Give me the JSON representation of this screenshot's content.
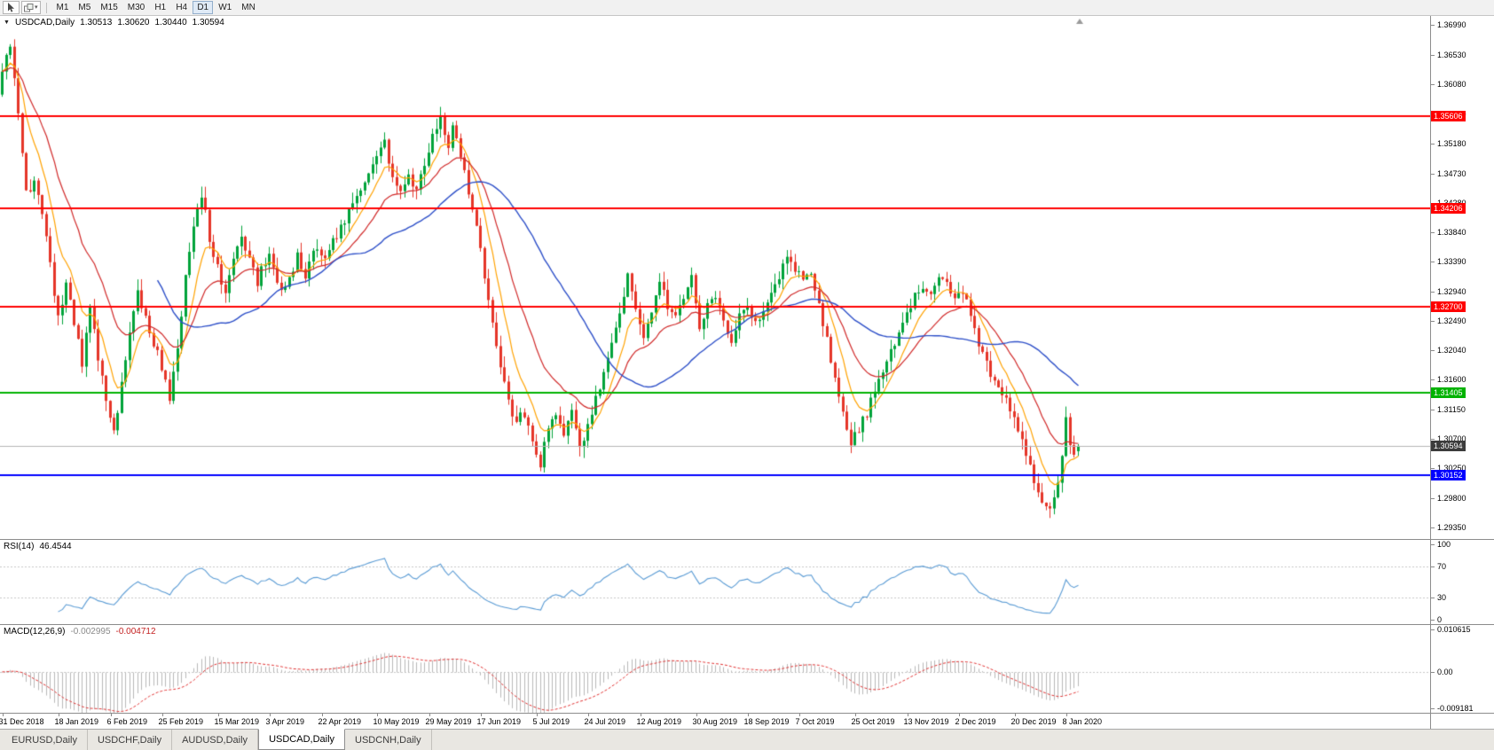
{
  "toolbar": {
    "timeframes": [
      "M1",
      "M5",
      "M15",
      "M30",
      "H1",
      "H4",
      "D1",
      "W1",
      "MN"
    ],
    "active_timeframe": "D1"
  },
  "chart": {
    "dropdown_icon": "▼",
    "symbol": "USDCAD,Daily",
    "open": "1.30513",
    "high": "1.30620",
    "low": "1.30440",
    "close": "1.30594"
  },
  "rsi": {
    "label": "RSI(14)",
    "value": "46.4544",
    "levels": [
      70,
      30
    ],
    "axis": [
      {
        "v": 100,
        "label": "100"
      },
      {
        "v": 70,
        "label": "70"
      },
      {
        "v": 30,
        "label": "30"
      },
      {
        "v": 0,
        "label": "0"
      }
    ]
  },
  "macd": {
    "label": "MACD(12,26,9)",
    "value_main": "-0.002995",
    "value_signal": "-0.004712",
    "max": 0.010615,
    "min": -0.009181,
    "axis": [
      {
        "v": 0.010615,
        "label": "0.010615"
      },
      {
        "v": 0,
        "label": "0.00"
      },
      {
        "v": -0.009181,
        "label": "-0.009181"
      }
    ]
  },
  "tabs": [
    {
      "label": "EURUSD,Daily",
      "active": false
    },
    {
      "label": "USDCHF,Daily",
      "active": false
    },
    {
      "label": "AUDUSD,Daily",
      "active": false
    },
    {
      "label": "USDCAD,Daily",
      "active": true
    },
    {
      "label": "USDCNH,Daily",
      "active": false
    }
  ],
  "chart_data": {
    "type": "candlestick",
    "symbol": "USDCAD",
    "timeframe": "Daily",
    "current_ohlc": {
      "open": 1.30513,
      "high": 1.3062,
      "low": 1.3044,
      "close": 1.30594
    },
    "y_max": 1.3712,
    "y_min": 1.2918,
    "y_ticks": [
      1.3699,
      1.3653,
      1.3608,
      1.3563,
      1.3518,
      1.3473,
      1.3428,
      1.3384,
      1.3339,
      1.3294,
      1.3249,
      1.3204,
      1.316,
      1.3115,
      1.307,
      1.3025,
      1.298,
      1.2935
    ],
    "bars_total": 271,
    "shift_fraction": 0.755,
    "hlines": [
      {
        "price": 1.35606,
        "color": "#ff0000",
        "label": "1.35606"
      },
      {
        "price": 1.34206,
        "color": "#ff0000",
        "label": "1.34206"
      },
      {
        "price": 1.327,
        "color": "#ff0000",
        "label": "1.32700"
      },
      {
        "price": 1.31405,
        "color": "#00b200",
        "label": "1.31405"
      },
      {
        "price": 1.30152,
        "color": "#0000ff",
        "label": "1.30152"
      }
    ],
    "bid_line": {
      "price": 1.30594,
      "label": "1.30594",
      "line_color": "#b4b4b4",
      "badge_bg": "#3c3c3c"
    },
    "x_labels": [
      {
        "index": 0,
        "label": "31 Dec 2018"
      },
      {
        "index": 14,
        "label": "18 Jan 2019"
      },
      {
        "index": 27,
        "label": "6 Feb 2019"
      },
      {
        "index": 40,
        "label": "25 Feb 2019"
      },
      {
        "index": 54,
        "label": "15 Mar 2019"
      },
      {
        "index": 67,
        "label": "3 Apr 2019"
      },
      {
        "index": 80,
        "label": "22 Apr 2019"
      },
      {
        "index": 94,
        "label": "10 May 2019"
      },
      {
        "index": 107,
        "label": "29 May 2019"
      },
      {
        "index": 120,
        "label": "17 Jun 2019"
      },
      {
        "index": 134,
        "label": "5 Jul 2019"
      },
      {
        "index": 147,
        "label": "24 Jul 2019"
      },
      {
        "index": 160,
        "label": "12 Aug 2019"
      },
      {
        "index": 174,
        "label": "30 Aug 2019"
      },
      {
        "index": 187,
        "label": "18 Sep 2019"
      },
      {
        "index": 200,
        "label": "7 Oct 2019"
      },
      {
        "index": 214,
        "label": "25 Oct 2019"
      },
      {
        "index": 227,
        "label": "13 Nov 2019"
      },
      {
        "index": 240,
        "label": "2 Dec 2019"
      },
      {
        "index": 254,
        "label": "20 Dec 2019"
      },
      {
        "index": 267,
        "label": "8 Jan 2020"
      }
    ],
    "price_anchors": [
      [
        0,
        1.363
      ],
      [
        2,
        1.3658
      ],
      [
        4,
        1.356
      ],
      [
        6,
        1.344
      ],
      [
        8,
        1.3465
      ],
      [
        10,
        1.3415
      ],
      [
        12,
        1.333
      ],
      [
        14,
        1.3255
      ],
      [
        16,
        1.3305
      ],
      [
        18,
        1.3245
      ],
      [
        20,
        1.3185
      ],
      [
        22,
        1.3265
      ],
      [
        24,
        1.3195
      ],
      [
        26,
        1.3135
      ],
      [
        28,
        1.3075
      ],
      [
        30,
        1.316
      ],
      [
        32,
        1.3235
      ],
      [
        34,
        1.33
      ],
      [
        36,
        1.325
      ],
      [
        38,
        1.3215
      ],
      [
        40,
        1.318
      ],
      [
        42,
        1.313
      ],
      [
        44,
        1.3215
      ],
      [
        46,
        1.331
      ],
      [
        48,
        1.339
      ],
      [
        50,
        1.3445
      ],
      [
        52,
        1.3375
      ],
      [
        54,
        1.333
      ],
      [
        56,
        1.3295
      ],
      [
        58,
        1.3345
      ],
      [
        60,
        1.3385
      ],
      [
        62,
        1.334
      ],
      [
        64,
        1.331
      ],
      [
        67,
        1.3355
      ],
      [
        70,
        1.3295
      ],
      [
        72,
        1.332
      ],
      [
        74,
        1.3345
      ],
      [
        76,
        1.331
      ],
      [
        78,
        1.336
      ],
      [
        80,
        1.334
      ],
      [
        82,
        1.336
      ],
      [
        84,
        1.338
      ],
      [
        86,
        1.34
      ],
      [
        88,
        1.343
      ],
      [
        90,
        1.3445
      ],
      [
        92,
        1.347
      ],
      [
        94,
        1.3495
      ],
      [
        96,
        1.352
      ],
      [
        98,
        1.3465
      ],
      [
        100,
        1.344
      ],
      [
        102,
        1.347
      ],
      [
        104,
        1.345
      ],
      [
        106,
        1.349
      ],
      [
        108,
        1.3535
      ],
      [
        110,
        1.3558
      ],
      [
        112,
        1.3505
      ],
      [
        113,
        1.354
      ],
      [
        115,
        1.3495
      ],
      [
        117,
        1.3445
      ],
      [
        119,
        1.3385
      ],
      [
        121,
        1.332
      ],
      [
        123,
        1.324
      ],
      [
        125,
        1.318
      ],
      [
        127,
        1.313
      ],
      [
        129,
        1.3095
      ],
      [
        131,
        1.311
      ],
      [
        133,
        1.306
      ],
      [
        135,
        1.3035
      ],
      [
        137,
        1.308
      ],
      [
        139,
        1.3105
      ],
      [
        141,
        1.307
      ],
      [
        143,
        1.312
      ],
      [
        145,
        1.3055
      ],
      [
        147,
        1.3085
      ],
      [
        149,
        1.313
      ],
      [
        151,
        1.3165
      ],
      [
        153,
        1.321
      ],
      [
        155,
        1.3265
      ],
      [
        157,
        1.3315
      ],
      [
        159,
        1.327
      ],
      [
        161,
        1.3225
      ],
      [
        163,
        1.327
      ],
      [
        165,
        1.33
      ],
      [
        167,
        1.3275
      ],
      [
        169,
        1.325
      ],
      [
        171,
        1.329
      ],
      [
        173,
        1.332
      ],
      [
        175,
        1.3245
      ],
      [
        177,
        1.327
      ],
      [
        179,
        1.329
      ],
      [
        181,
        1.3255
      ],
      [
        183,
        1.3215
      ],
      [
        185,
        1.3255
      ],
      [
        187,
        1.327
      ],
      [
        189,
        1.324
      ],
      [
        191,
        1.326
      ],
      [
        193,
        1.329
      ],
      [
        195,
        1.332
      ],
      [
        197,
        1.334
      ],
      [
        199,
        1.3325
      ],
      [
        201,
        1.331
      ],
      [
        203,
        1.3325
      ],
      [
        205,
        1.3275
      ],
      [
        207,
        1.322
      ],
      [
        209,
        1.3155
      ],
      [
        211,
        1.3105
      ],
      [
        213,
        1.3065
      ],
      [
        215,
        1.3085
      ],
      [
        217,
        1.311
      ],
      [
        219,
        1.314
      ],
      [
        221,
        1.317
      ],
      [
        223,
        1.32
      ],
      [
        225,
        1.323
      ],
      [
        227,
        1.326
      ],
      [
        229,
        1.3285
      ],
      [
        231,
        1.3305
      ],
      [
        233,
        1.3285
      ],
      [
        235,
        1.331
      ],
      [
        237,
        1.33
      ],
      [
        239,
        1.3285
      ],
      [
        241,
        1.3295
      ],
      [
        243,
        1.326
      ],
      [
        245,
        1.3215
      ],
      [
        247,
        1.318
      ],
      [
        249,
        1.316
      ],
      [
        251,
        1.314
      ],
      [
        253,
        1.311
      ],
      [
        255,
        1.308
      ],
      [
        257,
        1.305
      ],
      [
        259,
        1.3005
      ],
      [
        261,
        1.297
      ],
      [
        263,
        1.2958
      ],
      [
        265,
        1.3
      ],
      [
        266,
        1.305
      ],
      [
        267,
        1.3095
      ],
      [
        268,
        1.3052
      ],
      [
        269,
        1.3046
      ],
      [
        270,
        1.30594
      ]
    ],
    "colors": {
      "up": "#00a33a",
      "down": "#e53528",
      "ma_fast": "#ffa200",
      "ma_mid": "#d02828",
      "ma_slow": "#2d4fc8",
      "rsi": "#5a9bd4",
      "macd_hist": "#b9b9b9",
      "macd_signal": "#e03030"
    }
  }
}
